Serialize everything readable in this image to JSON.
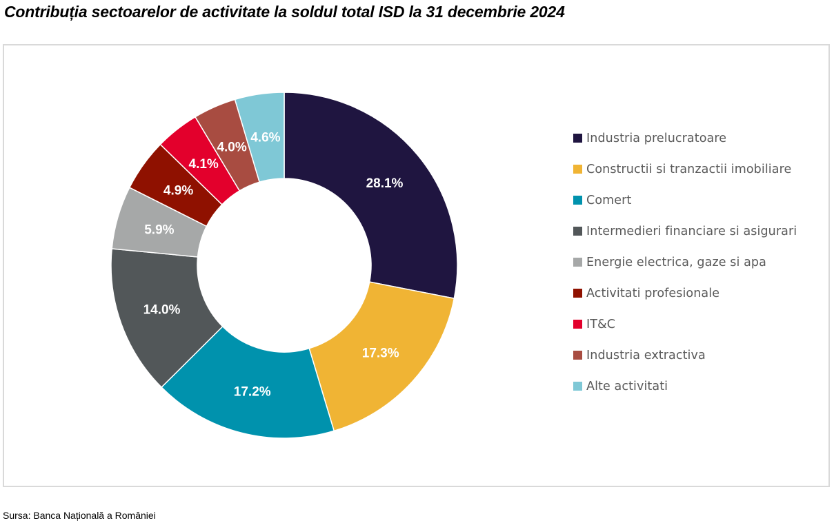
{
  "title": "Contribuția sectoarelor de activitate la soldul total ISD la 31 decembrie 2024",
  "source": "Sursa: Banca Națională a României",
  "chart_data": {
    "type": "pie",
    "subtype": "donut",
    "title": "Contribuția sectoarelor de activitate la soldul total ISD la 31 decembrie 2024",
    "start_angle": "12 o'clock, clockwise",
    "legend_position": "right",
    "unit": "%",
    "categories": [
      "Industria prelucratoare",
      "Constructii si tranzactii imobiliare",
      "Comert",
      "Intermedieri financiare si asigurari",
      "Energie electrica, gaze si apa",
      "Activitati profesionale",
      "IT&C",
      "Industria extractiva",
      "Alte activitati"
    ],
    "values": [
      28.1,
      17.3,
      17.2,
      14.0,
      5.9,
      4.9,
      4.1,
      4.0,
      4.6
    ],
    "labels": [
      "28.1%",
      "17.3%",
      "17.2%",
      "14.0%",
      "5.9%",
      "4.9%",
      "4.1%",
      "4.0%",
      "4.6%"
    ],
    "colors": [
      "#1f1540",
      "#f0b434",
      "#0092ad",
      "#525759",
      "#a6a8a8",
      "#8f1100",
      "#e3002c",
      "#a84c41",
      "#7fc8d6"
    ]
  }
}
